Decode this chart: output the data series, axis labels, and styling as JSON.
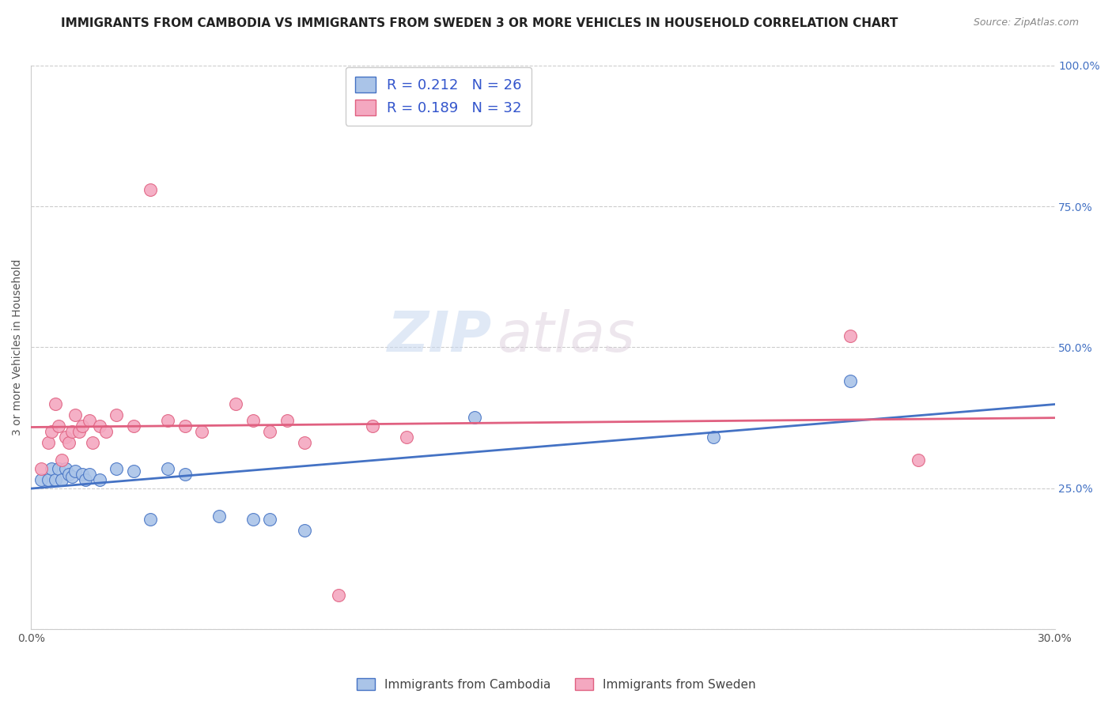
{
  "title": "IMMIGRANTS FROM CAMBODIA VS IMMIGRANTS FROM SWEDEN 3 OR MORE VEHICLES IN HOUSEHOLD CORRELATION CHART",
  "source": "Source: ZipAtlas.com",
  "ylabel": "3 or more Vehicles in Household",
  "xlim": [
    0.0,
    0.3
  ],
  "ylim": [
    0.0,
    1.0
  ],
  "xtick_positions": [
    0.0,
    0.05,
    0.1,
    0.15,
    0.2,
    0.25,
    0.3
  ],
  "xtick_labels": [
    "0.0%",
    "",
    "",
    "",
    "",
    "",
    "30.0%"
  ],
  "ytick_positions": [
    0.0,
    0.25,
    0.5,
    0.75,
    1.0
  ],
  "ytick_labels_right": [
    "",
    "25.0%",
    "50.0%",
    "75.0%",
    "100.0%"
  ],
  "legend_r1": "R = 0.212",
  "legend_n1": "N = 26",
  "legend_r2": "R = 0.189",
  "legend_n2": "N = 32",
  "color_cambodia": "#aac4e8",
  "color_sweden": "#f4a8c0",
  "line_color_cambodia": "#4472c4",
  "line_color_sweden": "#e06080",
  "watermark_zip": "ZIP",
  "watermark_atlas": "atlas",
  "cambodia_x": [
    0.003,
    0.005,
    0.006,
    0.007,
    0.008,
    0.009,
    0.01,
    0.011,
    0.012,
    0.013,
    0.015,
    0.016,
    0.017,
    0.02,
    0.025,
    0.03,
    0.035,
    0.04,
    0.045,
    0.055,
    0.065,
    0.07,
    0.08,
    0.13,
    0.2,
    0.24
  ],
  "cambodia_y": [
    0.265,
    0.265,
    0.285,
    0.265,
    0.285,
    0.265,
    0.285,
    0.275,
    0.27,
    0.28,
    0.275,
    0.265,
    0.275,
    0.265,
    0.285,
    0.28,
    0.195,
    0.285,
    0.275,
    0.2,
    0.195,
    0.195,
    0.175,
    0.375,
    0.34,
    0.44
  ],
  "sweden_x": [
    0.003,
    0.005,
    0.006,
    0.007,
    0.008,
    0.009,
    0.01,
    0.011,
    0.012,
    0.013,
    0.014,
    0.015,
    0.017,
    0.018,
    0.02,
    0.022,
    0.025,
    0.03,
    0.035,
    0.04,
    0.045,
    0.05,
    0.06,
    0.065,
    0.07,
    0.075,
    0.08,
    0.09,
    0.1,
    0.11,
    0.24,
    0.26
  ],
  "sweden_y": [
    0.285,
    0.33,
    0.35,
    0.4,
    0.36,
    0.3,
    0.34,
    0.33,
    0.35,
    0.38,
    0.35,
    0.36,
    0.37,
    0.33,
    0.36,
    0.35,
    0.38,
    0.36,
    0.78,
    0.37,
    0.36,
    0.35,
    0.4,
    0.37,
    0.35,
    0.37,
    0.33,
    0.06,
    0.36,
    0.34,
    0.52,
    0.3
  ],
  "title_fontsize": 11,
  "label_fontsize": 10,
  "tick_fontsize": 10,
  "legend_fontsize": 13
}
